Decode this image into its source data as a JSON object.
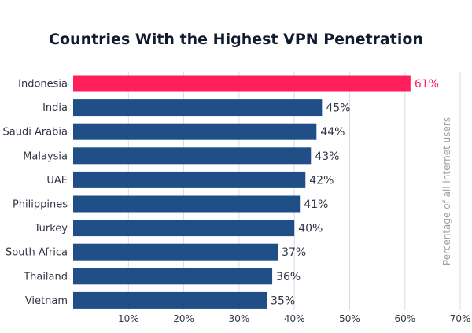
{
  "chart_data": {
    "type": "bar",
    "orientation": "horizontal",
    "title": "Countries With the Highest VPN Penetration",
    "xlabel": "",
    "ylabel": "Percentage of all internet users",
    "categories": [
      "Indonesia",
      "India",
      "Saudi Arabia",
      "Malaysia",
      "UAE",
      "Philippines",
      "Turkey",
      "South Africa",
      "Thailand",
      "Vietnam"
    ],
    "values": [
      61,
      45,
      44,
      43,
      42,
      41,
      40,
      37,
      36,
      35
    ],
    "value_labels": [
      "61%",
      "45%",
      "44%",
      "43%",
      "42%",
      "41%",
      "40%",
      "37%",
      "36%",
      "35%"
    ],
    "xlim": [
      0,
      70
    ],
    "x_ticks": [
      10,
      20,
      30,
      40,
      50,
      60,
      70
    ],
    "x_tick_labels": [
      "10%",
      "20%",
      "30%",
      "40%",
      "50%",
      "60%",
      "70%"
    ],
    "grid": "vertical",
    "legend": "none",
    "colors": {
      "highlight": "#ff1f5a",
      "bar": "#1f4f86",
      "title": "#111b2e",
      "text": "#2f3542",
      "grid": "#d9dde3",
      "axis_title": "#9aa0a8"
    },
    "highlight_index": 0
  }
}
